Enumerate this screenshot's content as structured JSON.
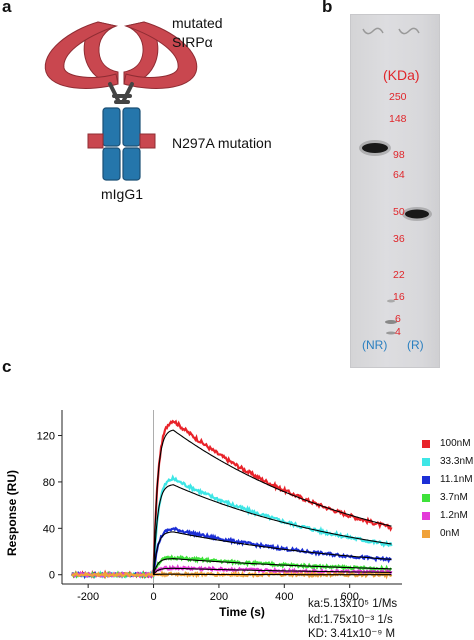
{
  "panels": {
    "a": "a",
    "b": "b",
    "c": "c"
  },
  "panel_a": {
    "label_sirp": "mutated",
    "label_sirp2": "SIRPα",
    "label_mutation": "N297A mutation",
    "label_igg": "mIgG1",
    "colors": {
      "sirp": "#c9474f",
      "fc": "#2576ab",
      "fc_dark": "#1a4f75",
      "hinge": "#444444"
    }
  },
  "panel_b": {
    "unit_label": "(KDa)",
    "markers": [
      "250",
      "148",
      "98",
      "64",
      "50",
      "36",
      "22",
      "16",
      "6",
      "4"
    ],
    "lane_labels": [
      "(NR)",
      "(R)"
    ],
    "colors": {
      "marker_text": "#e0262b",
      "lane_text": "#2a7fc0"
    }
  },
  "chart_data": {
    "type": "line",
    "xlabel": "Time (s)",
    "ylabel": "Response (RU)",
    "xlim": [
      -280,
      760
    ],
    "ylim": [
      -8,
      142
    ],
    "xticks": [
      -200,
      0,
      200,
      400,
      600
    ],
    "yticks": [
      0,
      40,
      80,
      120
    ],
    "injection_start": 0,
    "dissociation_start": 60,
    "series": [
      {
        "name": "100nM",
        "color": "#e8232a",
        "peak": 135,
        "end": 41
      },
      {
        "name": "33.3nM",
        "color": "#3ee6e6",
        "peak": 84,
        "end": 26
      },
      {
        "name": "11.1nM",
        "color": "#1c2fd6",
        "peak": 40,
        "end": 13
      },
      {
        "name": "3.7nM",
        "color": "#3ee23a",
        "peak": 15,
        "end": 5
      },
      {
        "name": "1.2nM",
        "color": "#e33ad8",
        "peak": 6,
        "end": 2
      },
      {
        "name": "0nM",
        "color": "#f0a23a",
        "peak": 0.5,
        "end": 0
      }
    ],
    "kinetics": [
      "ka:5.13x10⁵ 1/Ms",
      "kd:1.75x10⁻³ 1/s",
      "KD: 3.41x10⁻⁹ M"
    ]
  }
}
